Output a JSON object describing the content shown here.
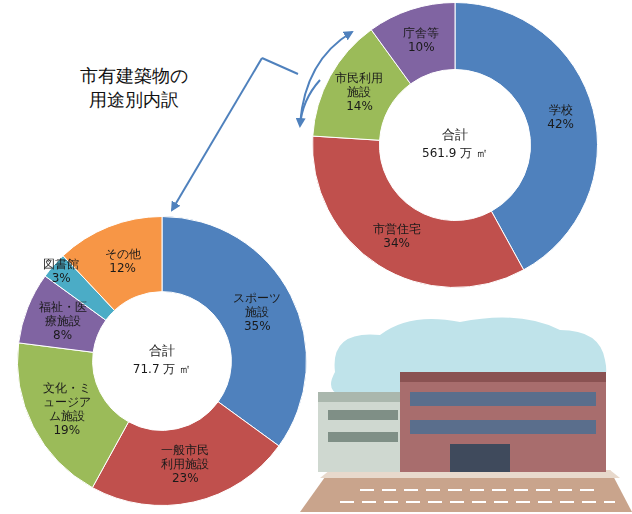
{
  "chart_data": [
    {
      "type": "doughnut",
      "categories": [
        "学校",
        "市営住宅",
        "市民利用施設",
        "庁舎等"
      ],
      "values": [
        42,
        34,
        14,
        10
      ],
      "value_labels": [
        "42%",
        "34%",
        "14%",
        "10%"
      ],
      "colors": [
        "#4f81bd",
        "#c0504d",
        "#9bbb59",
        "#8064a2"
      ],
      "data_labels": true,
      "center_text": [
        "合計",
        "561.9 万 ㎡"
      ],
      "annotations": [
        "市有建築物の用途別内訳"
      ]
    },
    {
      "type": "doughnut",
      "categories": [
        "スポーツ施設",
        "一般市民利用施設",
        "文化・ミュージアム施設",
        "福祉・医療施設",
        "図書館",
        "その他"
      ],
      "values": [
        35,
        23,
        19,
        8,
        3,
        12
      ],
      "value_labels": [
        "35%",
        "23%",
        "19%",
        "8%",
        "3%",
        "12%"
      ],
      "colors": [
        "#4f81bd",
        "#c0504d",
        "#9bbb59",
        "#8064a2",
        "#4bacc6",
        "#f79646"
      ],
      "data_labels": true,
      "center_text": [
        "合計",
        "71.7 万 ㎡"
      ]
    }
  ]
}
